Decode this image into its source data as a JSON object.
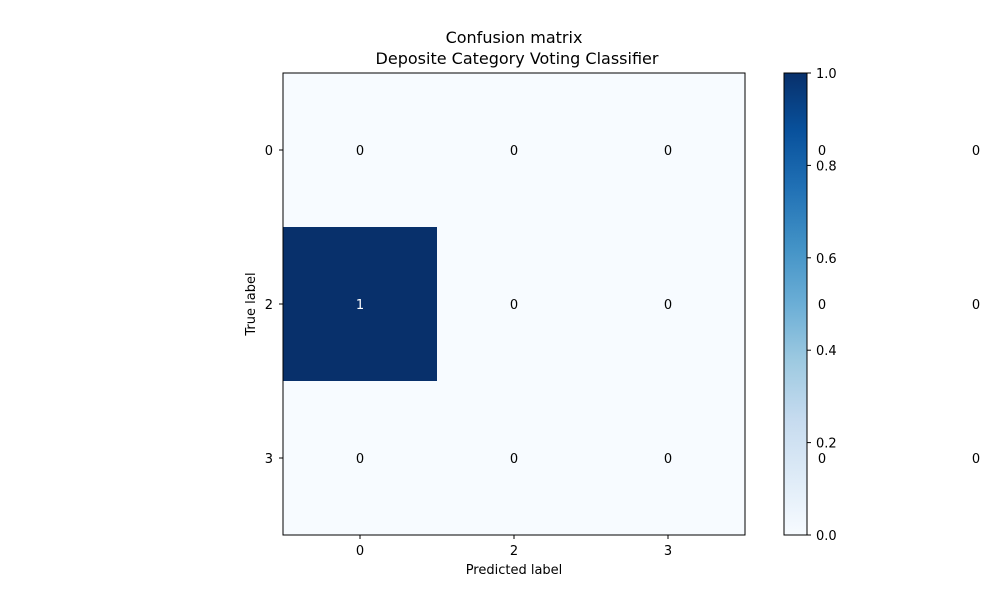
{
  "chart_data": {
    "type": "heatmap",
    "title": "Confusion matrix",
    "subtitle": "Deposite Category Voting Classifier",
    "xlabel": "Predicted label",
    "ylabel": "True label",
    "x_categories": [
      "0",
      "2",
      "3"
    ],
    "y_categories": [
      "0",
      "2",
      "3"
    ],
    "values": [
      [
        0,
        0,
        0
      ],
      [
        1,
        0,
        0
      ],
      [
        0,
        0,
        0
      ]
    ],
    "overflow_text_columns": [
      [
        "0",
        "0",
        "0"
      ],
      [
        "0",
        "0",
        "0"
      ]
    ],
    "colorbar": {
      "min": 0.0,
      "max": 1.0,
      "ticks": [
        "0.0",
        "0.2",
        "0.4",
        "0.6",
        "0.8",
        "1.0"
      ],
      "colormap": "Blues",
      "low_color": "#f7fbff",
      "high_color": "#08306b"
    },
    "text_color_dark": "#000000",
    "text_color_light": "#ffffff",
    "grid": false
  }
}
